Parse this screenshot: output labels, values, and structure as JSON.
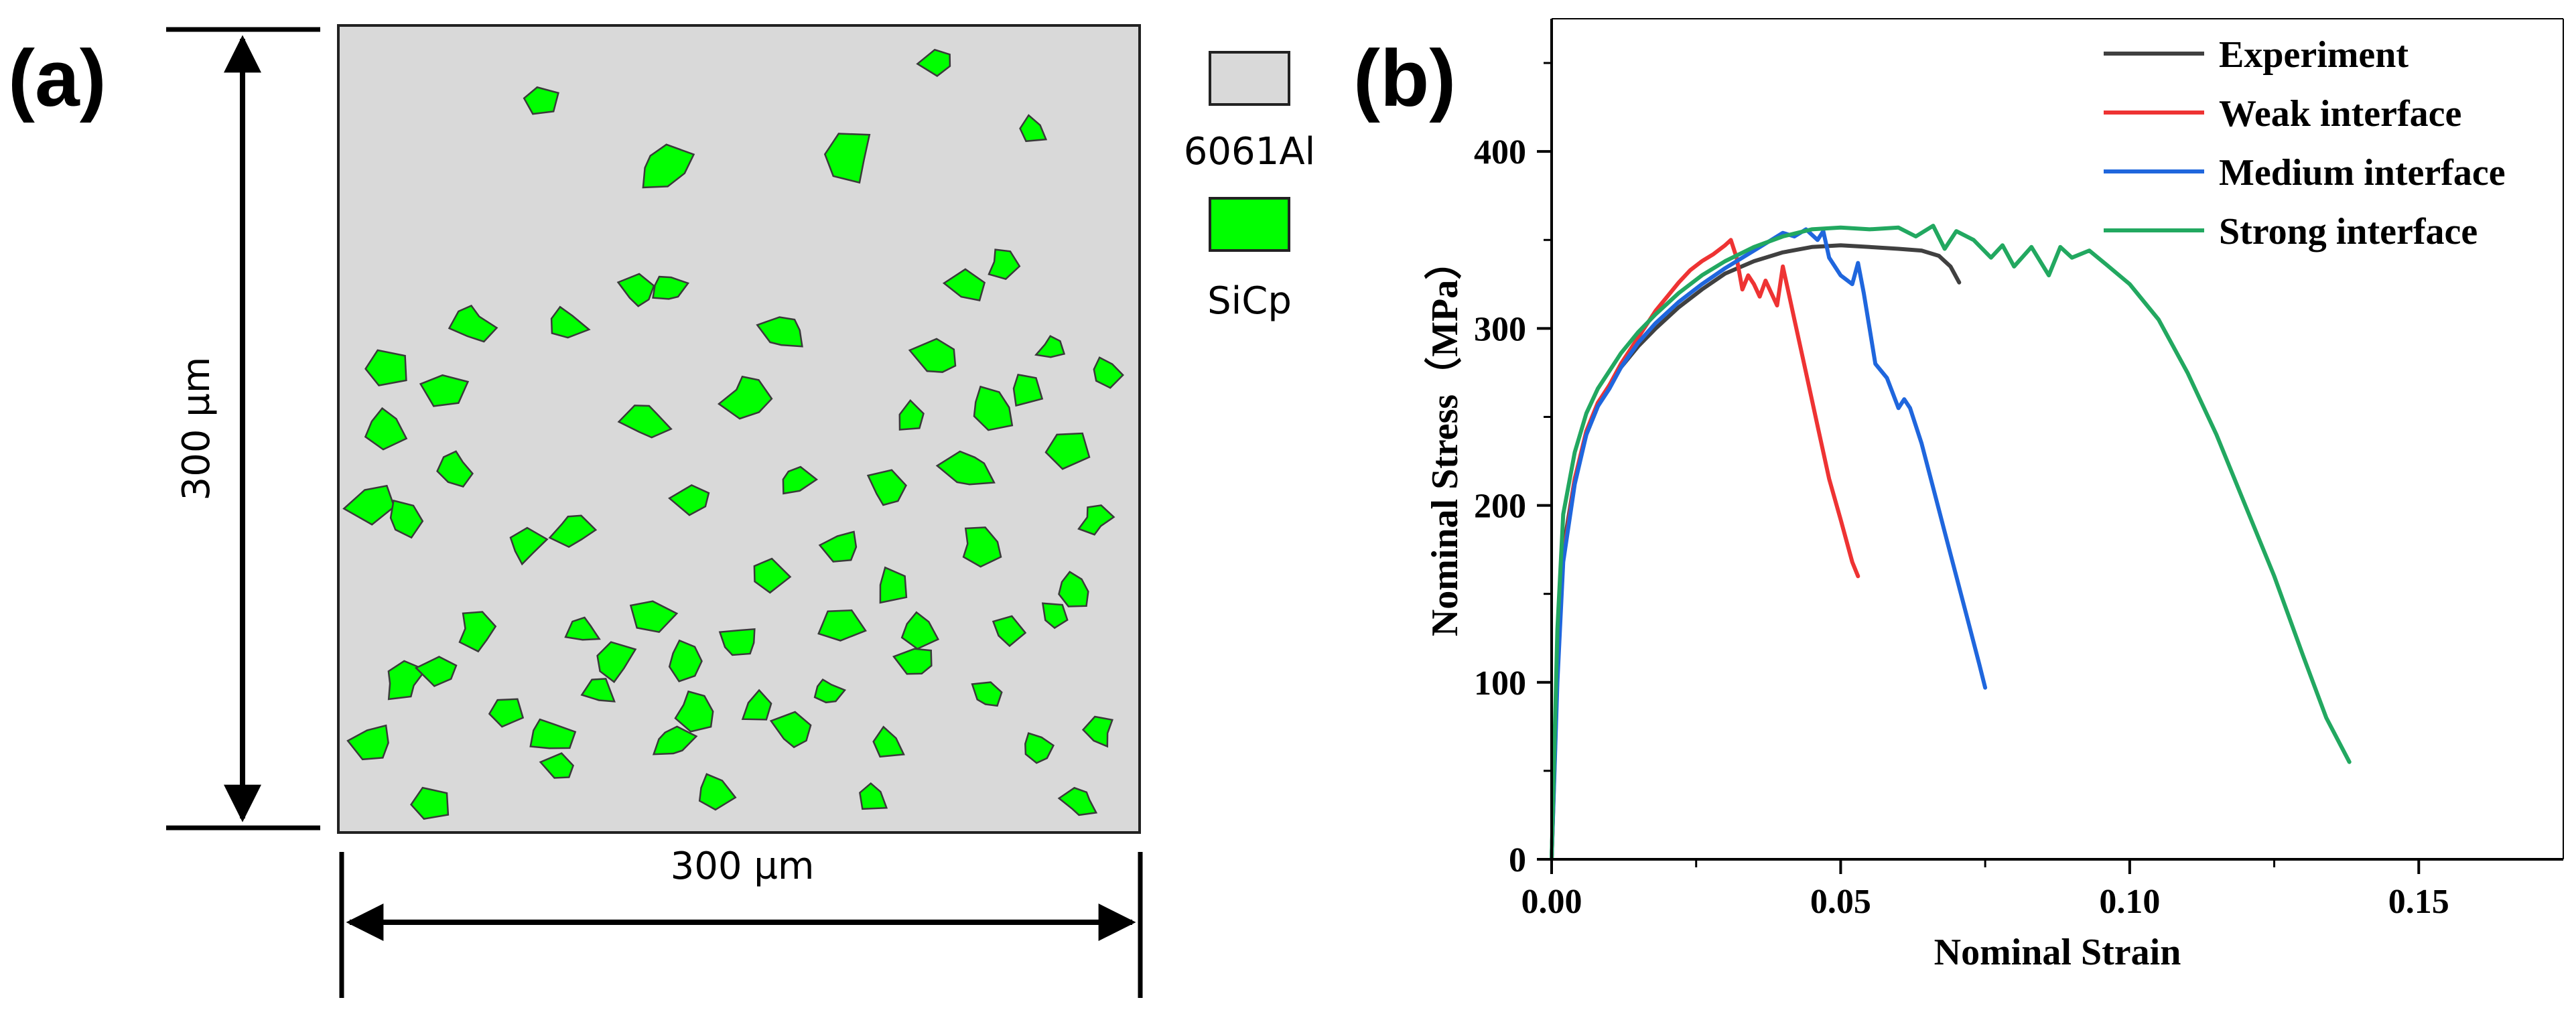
{
  "panel_a": {
    "label": "(a)",
    "height_dimension": "300 µm",
    "width_dimension": "300 µm",
    "legend": [
      {
        "name": "6061Al",
        "color": "#d9d9d9"
      },
      {
        "name": "SiCp",
        "color": "#00ff00"
      }
    ],
    "colors": {
      "matrix": "#d9d9d9",
      "particle": "#00ff00",
      "outline": "#3a3a3a"
    }
  },
  "panel_b": {
    "label": "(b)"
  },
  "chart_data": {
    "type": "line",
    "title": "",
    "xlabel": "Nominal Strain",
    "ylabel": "Nominal Stress（MPa）",
    "xlim": [
      0,
      0.175
    ],
    "ylim": [
      0,
      475
    ],
    "xticks": [
      0.0,
      0.05,
      0.1,
      0.15
    ],
    "xtick_labels": [
      "0.00",
      "0.05",
      "0.10",
      "0.15"
    ],
    "yticks": [
      0,
      100,
      200,
      300,
      400
    ],
    "ytick_labels": [
      "0",
      "100",
      "200",
      "300",
      "400"
    ],
    "grid": false,
    "legend_position": "top-right",
    "series": [
      {
        "name": "Experiment",
        "color": "#404040",
        "x": [
          0,
          0.001,
          0.002,
          0.004,
          0.006,
          0.008,
          0.01,
          0.012,
          0.015,
          0.018,
          0.022,
          0.026,
          0.03,
          0.035,
          0.04,
          0.045,
          0.05,
          0.055,
          0.06,
          0.064,
          0.067,
          0.069,
          0.0705
        ],
        "y": [
          0,
          110,
          175,
          215,
          240,
          256,
          268,
          278,
          290,
          300,
          312,
          322,
          331,
          338,
          343,
          346,
          347,
          346,
          345,
          344,
          341,
          335,
          326
        ]
      },
      {
        "name": "Weak interface",
        "color": "#ee3333",
        "x": [
          0,
          0.001,
          0.002,
          0.004,
          0.006,
          0.008,
          0.01,
          0.012,
          0.015,
          0.018,
          0.02,
          0.022,
          0.024,
          0.026,
          0.028,
          0.03,
          0.031,
          0.032,
          0.033,
          0.034,
          0.035,
          0.036,
          0.037,
          0.038,
          0.039,
          0.04,
          0.041,
          0.042,
          0.044,
          0.046,
          0.048,
          0.05,
          0.052,
          0.053
        ],
        "y": [
          0,
          105,
          170,
          215,
          242,
          258,
          268,
          280,
          295,
          310,
          318,
          326,
          333,
          338,
          342,
          347,
          350,
          340,
          322,
          330,
          325,
          318,
          327,
          320,
          313,
          335,
          320,
          305,
          275,
          245,
          215,
          192,
          168,
          160
        ]
      },
      {
        "name": "Medium interface",
        "color": "#1f66dd",
        "x": [
          0,
          0.001,
          0.002,
          0.004,
          0.006,
          0.008,
          0.01,
          0.012,
          0.015,
          0.018,
          0.022,
          0.026,
          0.03,
          0.034,
          0.038,
          0.04,
          0.042,
          0.044,
          0.046,
          0.047,
          0.048,
          0.05,
          0.052,
          0.053,
          0.054,
          0.055,
          0.056,
          0.058,
          0.06,
          0.061,
          0.062,
          0.064,
          0.066,
          0.068,
          0.07,
          0.072,
          0.074,
          0.075
        ],
        "y": [
          0,
          100,
          168,
          212,
          240,
          256,
          266,
          278,
          292,
          303,
          315,
          325,
          334,
          342,
          350,
          354,
          352,
          356,
          350,
          355,
          340,
          330,
          325,
          337,
          320,
          300,
          280,
          272,
          255,
          260,
          255,
          235,
          210,
          185,
          160,
          135,
          110,
          97
        ]
      },
      {
        "name": "Strong interface",
        "color": "#22a860",
        "x": [
          0,
          0.001,
          0.002,
          0.004,
          0.006,
          0.008,
          0.01,
          0.012,
          0.015,
          0.018,
          0.022,
          0.026,
          0.03,
          0.035,
          0.04,
          0.045,
          0.05,
          0.055,
          0.06,
          0.063,
          0.066,
          0.068,
          0.07,
          0.073,
          0.076,
          0.078,
          0.08,
          0.083,
          0.086,
          0.088,
          0.09,
          0.093,
          0.096,
          0.1,
          0.105,
          0.11,
          0.115,
          0.12,
          0.125,
          0.13,
          0.134,
          0.138
        ],
        "y": [
          0,
          130,
          195,
          230,
          252,
          266,
          276,
          286,
          298,
          308,
          320,
          330,
          338,
          346,
          352,
          356,
          357,
          356,
          357,
          352,
          358,
          345,
          355,
          350,
          340,
          347,
          335,
          346,
          330,
          346,
          340,
          344,
          336,
          325,
          305,
          275,
          240,
          200,
          160,
          115,
          80,
          55
        ]
      }
    ]
  }
}
